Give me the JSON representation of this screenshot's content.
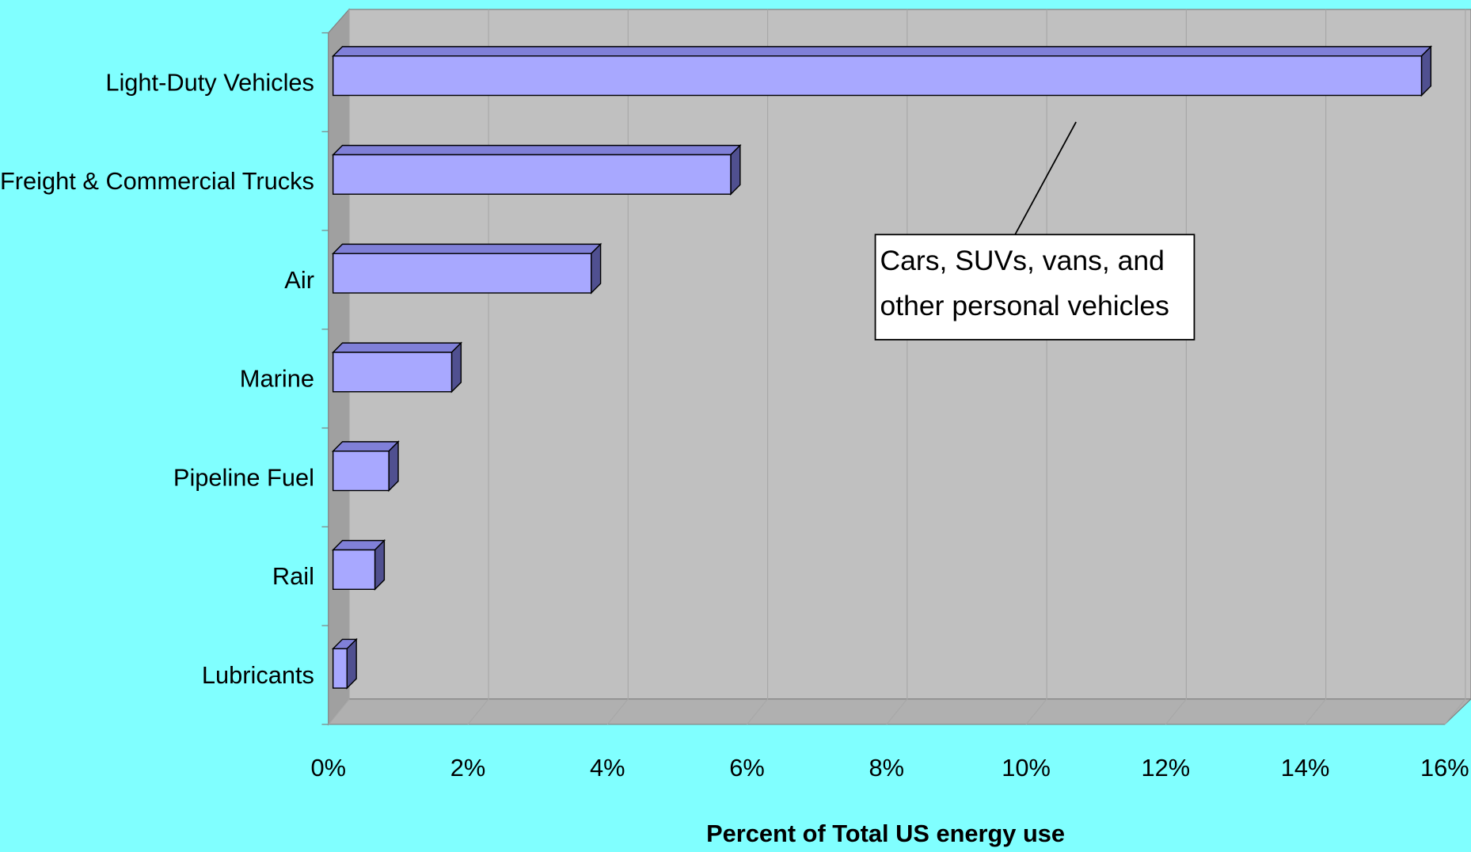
{
  "chart_data": {
    "type": "bar",
    "orientation": "horizontal",
    "three_d": true,
    "categories": [
      "Light-Duty Vehicles",
      "Freight & Commercial Trucks",
      "Air",
      "Marine",
      "Pipeline Fuel",
      "Rail",
      "Lubricants"
    ],
    "values": [
      15.6,
      5.7,
      3.7,
      1.7,
      0.8,
      0.6,
      0.2
    ],
    "color": "#a8a8ff",
    "xlim": [
      0,
      16
    ],
    "xticks": [
      {
        "value": 0,
        "label": "0%"
      },
      {
        "value": 2,
        "label": "2%"
      },
      {
        "value": 4,
        "label": "4%"
      },
      {
        "value": 6,
        "label": "6%"
      },
      {
        "value": 8,
        "label": "8%"
      },
      {
        "value": 10,
        "label": "10%"
      },
      {
        "value": 12,
        "label": "12%"
      },
      {
        "value": 14,
        "label": "14%"
      },
      {
        "value": 16,
        "label": "16%"
      }
    ],
    "grid": true,
    "xlabel": "Percent of Total US energy use",
    "annotation": [
      "Cars, SUVs, vans, and",
      "other personal vehicles"
    ]
  }
}
